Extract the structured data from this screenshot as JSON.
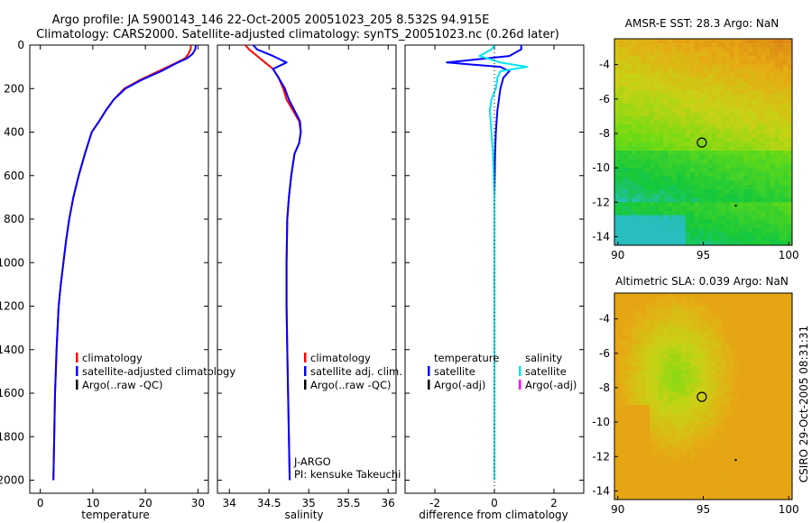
{
  "title": {
    "line1": "Argo profile: JA 5900143_146 22-Oct-2005 20051023_205 8.532S 94.915E",
    "line2": "Climatology: CARS2000. Satellite-adjusted climatology: synTS_20051023.nc (0.26d later)"
  },
  "credit": "CSIRO 29-Oct-2005 08:31:31",
  "colors": {
    "climatology": "#ff0000",
    "satellite": "#0000ff",
    "argo": "#000000",
    "sal_satellite": "#00e5ee",
    "sal_argo": "#ff00ff",
    "axis": "#000000"
  },
  "chart_data": [
    {
      "type": "line",
      "id": "temperature",
      "xlabel": "temperature",
      "ylabel": "",
      "xlim": [
        -2,
        32
      ],
      "ylim": [
        0,
        2060
      ],
      "y_reversed": true,
      "xticks": [
        0,
        10,
        20,
        30
      ],
      "yticks": [
        0,
        200,
        400,
        600,
        800,
        1000,
        1200,
        1400,
        1600,
        1800,
        2000
      ],
      "legend": [
        "climatology",
        "satellite-adjusted climatology",
        "Argo(..raw -QC)"
      ],
      "series": [
        {
          "name": "climatology",
          "color": "#ff0000",
          "x": [
            28.7,
            28.6,
            28.2,
            27.6,
            26.0,
            22.5,
            19.0,
            16.0,
            14.0,
            12.5,
            11.2,
            9.8,
            8.5,
            7.3,
            6.3,
            5.5,
            4.9,
            4.4,
            3.9,
            3.5,
            3.1,
            2.8,
            2.5
          ],
          "y": [
            0,
            20,
            40,
            60,
            80,
            120,
            160,
            200,
            250,
            300,
            350,
            400,
            500,
            600,
            700,
            800,
            900,
            1000,
            1100,
            1200,
            1400,
            1600,
            2000
          ]
        },
        {
          "name": "satellite-adjusted climatology",
          "color": "#0000ff",
          "x": [
            29.6,
            29.5,
            29.0,
            28.0,
            26.2,
            23.0,
            19.3,
            16.2,
            14.0,
            12.5,
            11.2,
            9.8,
            8.5,
            7.3,
            6.3,
            5.5,
            4.9,
            4.4,
            3.9,
            3.5,
            3.1,
            2.8,
            2.5
          ],
          "y": [
            0,
            20,
            40,
            60,
            80,
            120,
            160,
            200,
            250,
            300,
            350,
            400,
            500,
            600,
            700,
            800,
            900,
            1000,
            1100,
            1200,
            1400,
            1600,
            2000
          ]
        }
      ]
    },
    {
      "type": "line",
      "id": "salinity",
      "xlabel": "salinity",
      "xlim": [
        33.85,
        36.1
      ],
      "ylim": [
        0,
        2060
      ],
      "y_reversed": true,
      "xticks": [
        34,
        34.5,
        35,
        35.5,
        36
      ],
      "xticklabels": [
        "34",
        "34.5",
        "35",
        "35.5",
        "36"
      ],
      "legend": [
        "climatology",
        "satellite adj. clim.",
        "Argo(..raw -QC)"
      ],
      "annotations": [
        "J-ARGO",
        "PI: kensuke Takeuchi"
      ],
      "series": [
        {
          "name": "climatology",
          "color": "#ff0000",
          "x": [
            34.2,
            34.25,
            34.35,
            34.45,
            34.55,
            34.62,
            34.68,
            34.72,
            34.8,
            34.88,
            34.9,
            34.88,
            34.82,
            34.78,
            34.75,
            34.73,
            34.72,
            34.72,
            34.73,
            34.74,
            34.75,
            34.76
          ],
          "y": [
            0,
            20,
            50,
            80,
            110,
            150,
            200,
            250,
            300,
            350,
            400,
            450,
            500,
            600,
            700,
            800,
            1000,
            1200,
            1400,
            1600,
            1800,
            2000
          ]
        },
        {
          "name": "satellite adj. clim.",
          "color": "#0000ff",
          "x": [
            34.3,
            34.35,
            34.55,
            34.72,
            34.55,
            34.62,
            34.7,
            34.75,
            34.82,
            34.89,
            34.9,
            34.88,
            34.82,
            34.78,
            34.75,
            34.73,
            34.72,
            34.72,
            34.73,
            34.74,
            34.75,
            34.76
          ],
          "y": [
            0,
            20,
            50,
            80,
            110,
            150,
            200,
            250,
            300,
            350,
            400,
            450,
            500,
            600,
            700,
            800,
            1000,
            1200,
            1400,
            1600,
            1800,
            2000
          ]
        }
      ]
    },
    {
      "type": "line",
      "id": "difference",
      "xlabel": "difference from climatology",
      "xlim": [
        -3.0,
        3.0
      ],
      "ylim": [
        0,
        2060
      ],
      "y_reversed": true,
      "xticks": [
        -2,
        0,
        2
      ],
      "legend_left_title": "temperature",
      "legend_right_title": "salinity",
      "legend": [
        "satellite",
        "Argo(-adj)",
        "satellite",
        "Argo(-adj)"
      ],
      "series": [
        {
          "name": "temperature satellite",
          "color": "#0000ff",
          "x": [
            0.9,
            0.9,
            0.5,
            -1.6,
            0.2,
            0.5,
            0.3,
            0.2,
            0.15,
            0.1,
            0.05,
            0.02,
            0.0,
            0.0,
            0.0,
            0.0,
            0.0
          ],
          "y": [
            0,
            20,
            50,
            80,
            100,
            120,
            150,
            200,
            250,
            300,
            400,
            500,
            700,
            1000,
            1400,
            1800,
            2000
          ]
        },
        {
          "name": "salinity satellite",
          "color": "#00e5ee",
          "x": [
            0.0,
            -0.1,
            -0.5,
            0.2,
            1.1,
            0.2,
            0.1,
            0.05,
            -0.1,
            -0.15,
            -0.1,
            -0.05,
            0.0,
            0.0,
            0.0,
            0.0,
            0.0
          ],
          "y": [
            0,
            20,
            50,
            80,
            100,
            120,
            150,
            200,
            250,
            300,
            400,
            500,
            700,
            1000,
            1400,
            1800,
            2000
          ]
        }
      ]
    },
    {
      "type": "heatmap",
      "id": "sst-map",
      "title": "AMSR-E SST: 28.3 Argo: NaN",
      "xlim": [
        89.8,
        100.2
      ],
      "ylim": [
        -14.5,
        -2.5
      ],
      "xticks": [
        90,
        95,
        100
      ],
      "yticks": [
        -4,
        -6,
        -8,
        -10,
        -12,
        -14
      ],
      "marker": {
        "lon": 94.915,
        "lat": -8.532
      }
    },
    {
      "type": "heatmap",
      "id": "sla-map",
      "title": "Altimetric SLA: 0.039 Argo: NaN",
      "xlim": [
        89.8,
        100.2
      ],
      "ylim": [
        -14.5,
        -2.5
      ],
      "xticks": [
        90,
        95,
        100
      ],
      "yticks": [
        -4,
        -6,
        -8,
        -10,
        -12,
        -14
      ],
      "marker": {
        "lon": 94.915,
        "lat": -8.532
      }
    }
  ]
}
